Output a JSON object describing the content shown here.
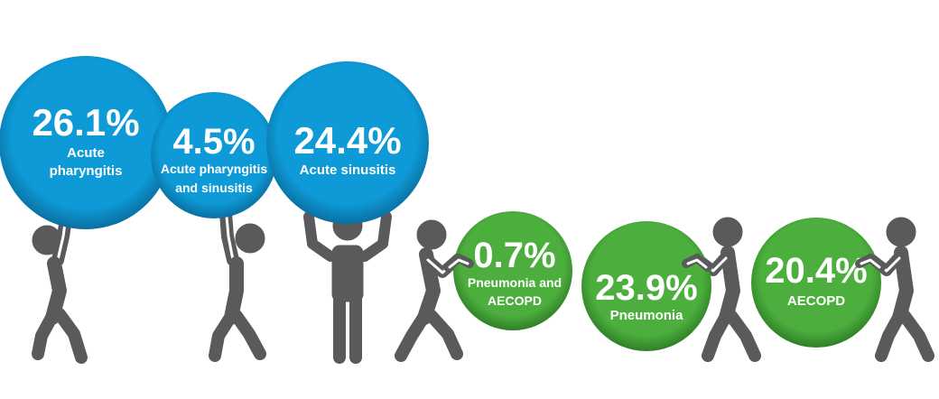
{
  "colors": {
    "blue": "#0d9ad6",
    "blue_dark": "#0a6fa0",
    "green": "#4caf3d",
    "green_dark": "#2f7f27",
    "figure": "#5a5a5c"
  },
  "bubbles": [
    {
      "id": "acute-pharyngitis",
      "value": 26.1,
      "pct": "26.1%",
      "lines": [
        "Acute",
        "pharyngitis"
      ],
      "color": "blue"
    },
    {
      "id": "acute-pharyngitis-sinusitis",
      "value": 4.5,
      "pct": "4.5%",
      "lines": [
        "Acute pharyngitis",
        "and sinusitis"
      ],
      "color": "blue"
    },
    {
      "id": "acute-sinusitis",
      "value": 24.4,
      "pct": "24.4%",
      "lines": [
        "Acute sinusitis"
      ],
      "color": "blue"
    },
    {
      "id": "pneumonia-aecopd",
      "value": 0.7,
      "pct": "0.7%",
      "lines": [
        "Pneumonia and",
        "AECOPD"
      ],
      "color": "green"
    },
    {
      "id": "pneumonia",
      "value": 23.9,
      "pct": "23.9%",
      "lines": [
        "Pneumonia"
      ],
      "color": "green"
    },
    {
      "id": "aecopd",
      "value": 20.4,
      "pct": "20.4%",
      "lines": [
        "AECOPD"
      ],
      "color": "green"
    }
  ],
  "figures": [
    {
      "pose": "lifting-one-arm"
    },
    {
      "pose": "lifting-one-arm"
    },
    {
      "pose": "lifting-both-arms"
    },
    {
      "pose": "pushing"
    },
    {
      "pose": "pushing"
    },
    {
      "pose": "pushing"
    }
  ]
}
